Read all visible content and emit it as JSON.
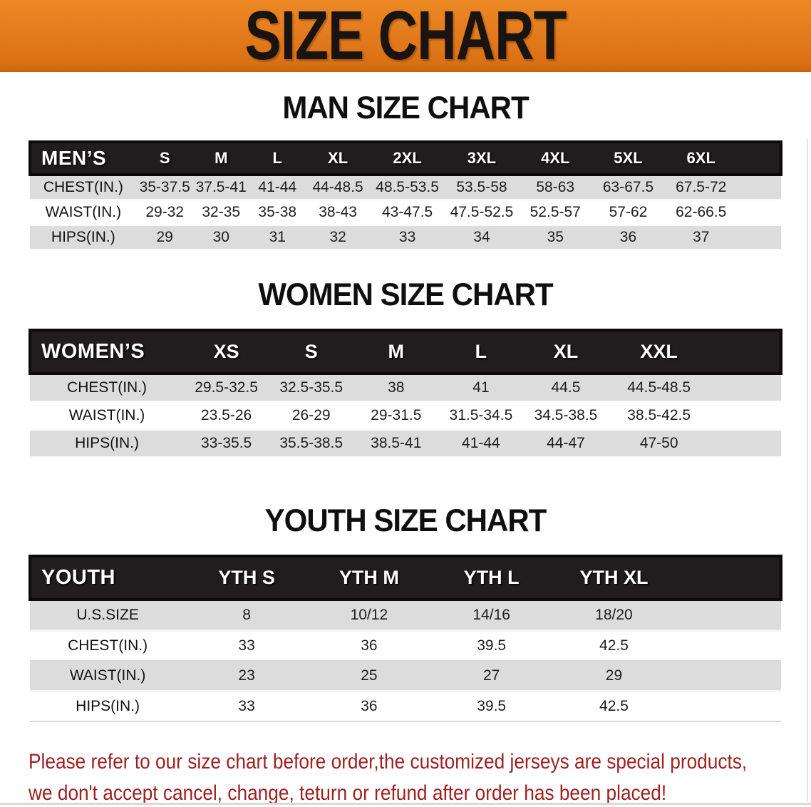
{
  "banner": {
    "title": "SIZE CHART",
    "bg_color": "#e2791b",
    "text_color": "#191311"
  },
  "colors": {
    "header_bar": "#211c1d",
    "row_stripe_gray": "#dcdcdc",
    "note_red": "#9e2020"
  },
  "sections": [
    {
      "id": "men",
      "heading": "MAN SIZE CHART",
      "table": {
        "header_label": "MEN’S",
        "columns": [
          "S",
          "M",
          "L",
          "XL",
          "2XL",
          "3XL",
          "4XL",
          "5XL",
          "6XL"
        ],
        "rows": [
          {
            "label": "CHEST(IN.)",
            "values": [
              "35-37.5",
              "37.5-41",
              "41-44",
              "44-48.5",
              "48.5-53.5",
              "53.5-58",
              "58-63",
              "63-67.5",
              "67.5-72"
            ]
          },
          {
            "label": "WAIST(IN.)",
            "values": [
              "29-32",
              "32-35",
              "35-38",
              "38-43",
              "43-47.5",
              "47.5-52.5",
              "52.5-57",
              "57-62",
              "62-66.5"
            ]
          },
          {
            "label": "HIPS(IN.)",
            "values": [
              "29",
              "30",
              "31",
              "32",
              "33",
              "34",
              "35",
              "36",
              "37"
            ]
          }
        ]
      }
    },
    {
      "id": "women",
      "heading": "WOMEN SIZE CHART",
      "table": {
        "header_label": "WOMEN’S",
        "columns": [
          "XS",
          "S",
          "M",
          "L",
          "XL",
          "XXL"
        ],
        "rows": [
          {
            "label": "CHEST(IN.)",
            "values": [
              "29.5-32.5",
              "32.5-35.5",
              "38",
              "41",
              "44.5",
              "44.5-48.5"
            ]
          },
          {
            "label": "WAIST(IN.)",
            "values": [
              "23.5-26",
              "26-29",
              "29-31.5",
              "31.5-34.5",
              "34.5-38.5",
              "38.5-42.5"
            ]
          },
          {
            "label": "HIPS(IN.)",
            "values": [
              "33-35.5",
              "35.5-38.5",
              "38.5-41",
              "41-44",
              "44-47",
              "47-50"
            ]
          }
        ]
      }
    },
    {
      "id": "youth",
      "heading": "YOUTH SIZE CHART",
      "table": {
        "header_label": "YOUTH",
        "columns": [
          "YTH S",
          "YTH M",
          "YTH L",
          "YTH XL"
        ],
        "rows": [
          {
            "label": "U.S.SIZE",
            "values": [
              "8",
              "10/12",
              "14/16",
              "18/20"
            ]
          },
          {
            "label": "CHEST(IN.)",
            "values": [
              "33",
              "36",
              "39.5",
              "42.5"
            ]
          },
          {
            "label": "WAIST(IN.)",
            "values": [
              "23",
              "25",
              "27",
              "29"
            ]
          },
          {
            "label": "HIPS(IN.)",
            "values": [
              "33",
              "36",
              "39.5",
              "42.5"
            ]
          }
        ]
      }
    }
  ],
  "footer_note": {
    "line1": "Please refer to our size chart before order,the customized jerseys are special products,",
    "line2": "we don't accept cancel, change, teturn or refund after order has been placed!"
  }
}
